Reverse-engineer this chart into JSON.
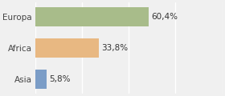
{
  "categories": [
    "Asia",
    "Africa",
    "Europa"
  ],
  "values": [
    5.8,
    33.8,
    60.4
  ],
  "bar_colors": [
    "#7b9dc7",
    "#e8b882",
    "#a8bc8a"
  ],
  "labels": [
    "5,8%",
    "33,8%",
    "60,4%"
  ],
  "xlim": [
    0,
    100
  ],
  "background_color": "#f0f0f0",
  "bar_height": 0.62,
  "label_fontsize": 7.5,
  "tick_fontsize": 7.5
}
